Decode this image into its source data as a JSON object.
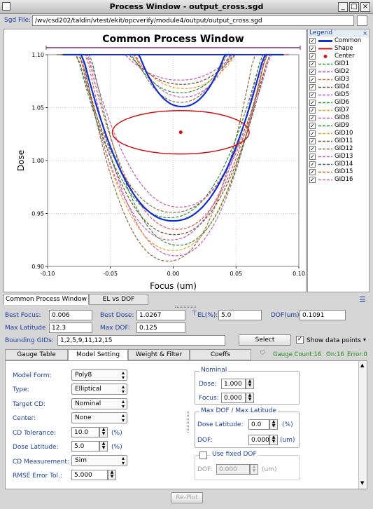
{
  "window": {
    "title": "Process Window - output_cross.sgd",
    "min_label": "_",
    "max_label": "□",
    "close_label": "×"
  },
  "sgd": {
    "label": "Sgd File:",
    "path": "/wv/csd202/taldin/vtest/ekit/opcverify/module4/output/output_cross.sgd"
  },
  "chart_data": {
    "type": "line",
    "title": "Common Process Window",
    "xlabel": "Focus (um)",
    "ylabel": "Dose",
    "xlim": [
      -0.1,
      0.1
    ],
    "ylim": [
      0.9,
      1.1
    ],
    "xticks": [
      "-0.10",
      "-0.05",
      "0.00",
      "0.05",
      "0.10"
    ],
    "yticks": [
      "0.90",
      "0.95",
      "1.00",
      "1.05",
      "1.10"
    ],
    "grid": true,
    "center": {
      "x": 0.006,
      "y": 1.0267
    },
    "ellipse": {
      "cx": 0.006,
      "cy": 1.0267,
      "rx": 0.0545,
      "ry": 0.0205
    },
    "common_outer": {
      "center": 0.0,
      "width": 0.055,
      "min_dose": 0.943
    },
    "common_inner": {
      "center": 0.007,
      "width": 0.026,
      "min_dose": 1.051
    },
    "gauges_outer": [
      {
        "center": -0.004,
        "width": 0.052,
        "min_dose": 0.905,
        "color": "#8b6a3a"
      },
      {
        "center": 0.002,
        "width": 0.054,
        "min_dose": 0.91,
        "color": "#c65ab0"
      },
      {
        "center": 0.0,
        "width": 0.056,
        "min_dose": 0.915,
        "color": "#f0a020"
      },
      {
        "center": 0.004,
        "width": 0.053,
        "min_dose": 0.92,
        "color": "#2a8a3a"
      },
      {
        "center": -0.002,
        "width": 0.055,
        "min_dose": 0.925,
        "color": "#c65ab0"
      },
      {
        "center": 0.001,
        "width": 0.057,
        "min_dose": 0.93,
        "color": "#7a4a2a"
      },
      {
        "center": 0.003,
        "width": 0.054,
        "min_dose": 0.935,
        "color": "#e05050"
      },
      {
        "center": -0.003,
        "width": 0.056,
        "min_dose": 0.946,
        "color": "#2a8a3a"
      },
      {
        "center": 0.0,
        "width": 0.058,
        "min_dose": 0.951,
        "color": "#8b6a3a"
      },
      {
        "center": 0.005,
        "width": 0.055,
        "min_dose": 0.956,
        "color": "#c65ab0"
      }
    ],
    "gauges_inner": [
      {
        "center": 0.006,
        "width": 0.028,
        "min_dose": 1.055,
        "color": "#8b6a3a"
      },
      {
        "center": 0.008,
        "width": 0.029,
        "min_dose": 1.06,
        "color": "#c65ab0"
      },
      {
        "center": 0.006,
        "width": 0.03,
        "min_dose": 1.064,
        "color": "#2a8a3a"
      },
      {
        "center": 0.009,
        "width": 0.031,
        "min_dose": 1.068,
        "color": "#f0a020"
      },
      {
        "center": 0.007,
        "width": 0.032,
        "min_dose": 1.072,
        "color": "#7a4a2a"
      },
      {
        "center": 0.005,
        "width": 0.033,
        "min_dose": 1.076,
        "color": "#c65ab0"
      }
    ]
  },
  "legend": {
    "title": "Legend",
    "items": [
      {
        "name": "Common",
        "color": "#1030d0",
        "style": "solid"
      },
      {
        "name": "Shape",
        "color": "#d01010",
        "style": "solid"
      },
      {
        "name": "Center",
        "color": "#e01010",
        "style": "dot"
      },
      {
        "name": "GID1",
        "color": "#2a9a2a",
        "style": "dash"
      },
      {
        "name": "GID2",
        "color": "#b040c0",
        "style": "dash"
      },
      {
        "name": "GID3",
        "color": "#e07030",
        "style": "dash"
      },
      {
        "name": "GID4",
        "color": "#7a4a2a",
        "style": "dash"
      },
      {
        "name": "GID5",
        "color": "#d050a0",
        "style": "dash"
      },
      {
        "name": "GID6",
        "color": "#2a8a3a",
        "style": "dash"
      },
      {
        "name": "GID7",
        "color": "#f0a020",
        "style": "dash"
      },
      {
        "name": "GID8",
        "color": "#c65ab0",
        "style": "dash"
      },
      {
        "name": "GID9",
        "color": "#2a8a3a",
        "style": "dash"
      },
      {
        "name": "GID10",
        "color": "#f0a020",
        "style": "dash"
      },
      {
        "name": "GID11",
        "color": "#7a4a2a",
        "style": "dash"
      },
      {
        "name": "GID12",
        "color": "#8b6a3a",
        "style": "dash"
      },
      {
        "name": "GID13",
        "color": "#c65ab0",
        "style": "dash"
      },
      {
        "name": "GID14",
        "color": "#3a6a3a",
        "style": "dash"
      },
      {
        "name": "GID15",
        "color": "#c06020",
        "style": "dash"
      },
      {
        "name": "GID16",
        "color": "#d060b0",
        "style": "dash"
      }
    ]
  },
  "view_tabs": {
    "common": "Common Process Window",
    "el_dof": "EL vs DOF"
  },
  "results": {
    "best_focus_label": "Best Focus:",
    "best_focus": "0.006",
    "best_dose_label": "Best Dose:",
    "best_dose": "1.0267",
    "el_label": "EL(%):",
    "el": "5.0",
    "dof_label": "DOF(um):",
    "dof": "0.1091",
    "max_lat_label": "Max Latitude",
    "max_lat": "12.3",
    "max_dof_label": "Max DOF:",
    "max_dof": "0.125",
    "bgids_label": "Bounding GIDs:",
    "bgids": "1,2,5,9,11,12,15",
    "select_label": "Select",
    "show_points_label": "Show data points"
  },
  "settings_tabs": [
    "Gauge Table",
    "Model Setting",
    "Weight & Filter",
    "Coeffs"
  ],
  "gauge_status": {
    "count": "Gauge Count:16",
    "on": "On:16",
    "error": "Error:0"
  },
  "model": {
    "model_form_label": "Model Form:",
    "model_form": "Poly8",
    "type_label": "Type:",
    "type": "Elliptical",
    "target_cd_label": "Target CD:",
    "target_cd": "Nominal",
    "center_label": "Center:",
    "center": "None",
    "cd_tol_label": "CD Tolerance:",
    "cd_tol": "10.0",
    "cd_tol_unit": "(%)",
    "dose_lat_label": "Dose Latitude:",
    "dose_lat": "5.0",
    "dose_lat_unit": "(%)",
    "cd_meas_label": "CD Measurement:",
    "cd_meas": "Sim",
    "rmse_label": "RMSE Error Tol.:",
    "rmse": "5.000"
  },
  "nominal": {
    "title": "Nominal",
    "dose_label": "Dose:",
    "dose": "1.000",
    "focus_label": "Focus:",
    "focus": "0.000"
  },
  "maxdof": {
    "title": "Max DOF / Max Latitude",
    "dose_lat_label": "Dose Latitude:",
    "dose_lat": "0.0",
    "dose_lat_unit": "(%)",
    "dof_label": "DOF:",
    "dof": "0.000",
    "dof_unit": "(um)"
  },
  "fixed_dof": {
    "label": "Use fixed DOF",
    "dof_label": "DOF:",
    "dof": "0.000",
    "dof_unit": "(um)"
  },
  "replot_label": "Re-Plot"
}
